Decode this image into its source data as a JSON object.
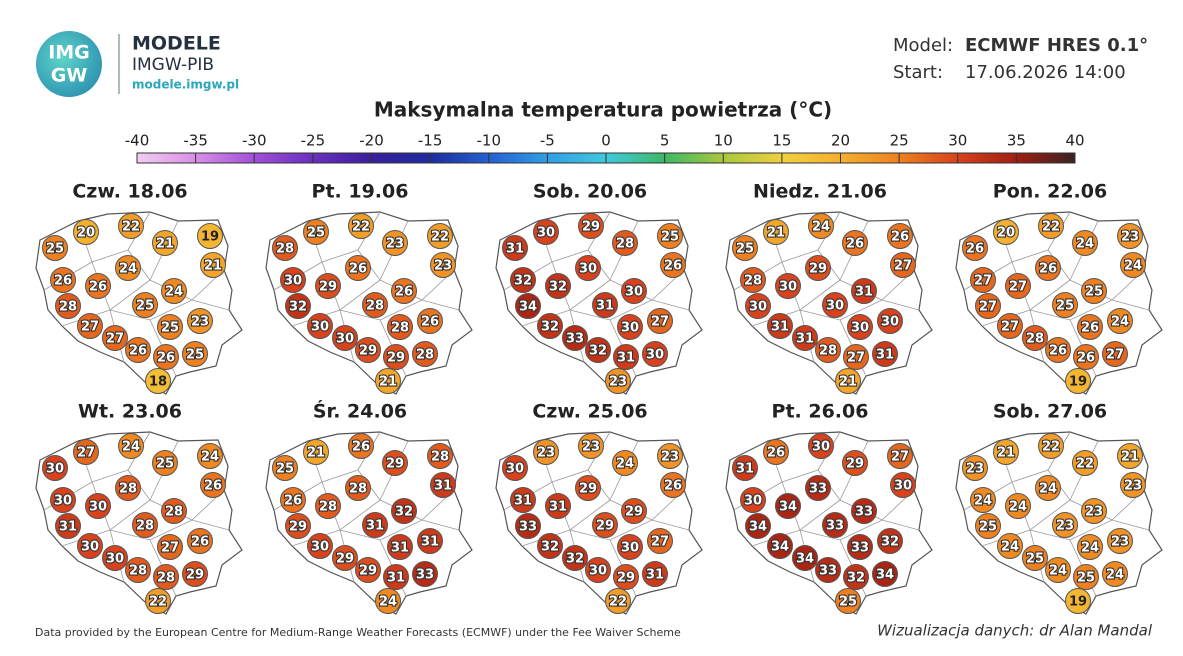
{
  "header": {
    "logo_top": "IMG",
    "logo_bottom": "GW",
    "brand": "MODELE",
    "brand_sub": "IMGW-PIB",
    "url": "modele.imgw.pl",
    "model_label": "Model:",
    "model_value": "ECMWF HRES 0.1°",
    "start_label": "Start:",
    "start_value": "17.06.2026 14:00"
  },
  "chart_data": {
    "type": "map",
    "title": "Maksymalna temperatura powietrza (°C)",
    "clim": [
      -40,
      40
    ],
    "cticks": [
      -40,
      -35,
      -30,
      -25,
      -20,
      -15,
      -10,
      -5,
      0,
      5,
      10,
      15,
      20,
      25,
      30,
      35,
      40
    ],
    "colorscale": [
      "#f3cdf3",
      "#d890e6",
      "#a050d8",
      "#6a2fc0",
      "#3a1e9c",
      "#1c2c9e",
      "#2460d2",
      "#2f9ee4",
      "#40c9de",
      "#3cb864",
      "#a8c83c",
      "#efd040",
      "#f5b02e",
      "#ee8020",
      "#d8421c",
      "#a01e12",
      "#3a2222"
    ],
    "panels": [
      {
        "title": "Czw. 18.06",
        "values": [
          25,
          20,
          22,
          21,
          19,
          21,
          24,
          26,
          26,
          24,
          25,
          28,
          27,
          25,
          23,
          27,
          26,
          26,
          25,
          18
        ]
      },
      {
        "title": "Pt. 19.06",
        "values": [
          28,
          25,
          22,
          23,
          22,
          23,
          26,
          30,
          29,
          26,
          28,
          32,
          30,
          28,
          26,
          30,
          29,
          29,
          28,
          21
        ]
      },
      {
        "title": "Sob. 20.06",
        "values": [
          31,
          30,
          29,
          28,
          25,
          26,
          30,
          32,
          32,
          30,
          31,
          34,
          32,
          30,
          27,
          33,
          32,
          31,
          30,
          23
        ]
      },
      {
        "title": "Niedz. 21.06",
        "values": [
          25,
          21,
          24,
          26,
          26,
          27,
          29,
          28,
          30,
          31,
          30,
          30,
          31,
          30,
          30,
          31,
          28,
          27,
          31,
          21
        ]
      },
      {
        "title": "Pon. 22.06",
        "values": [
          26,
          20,
          22,
          24,
          23,
          24,
          26,
          27,
          27,
          25,
          25,
          27,
          27,
          26,
          24,
          28,
          26,
          26,
          27,
          19
        ]
      },
      {
        "title": "Wt. 23.06",
        "values": [
          30,
          27,
          24,
          25,
          24,
          26,
          28,
          30,
          30,
          28,
          28,
          31,
          30,
          27,
          26,
          30,
          28,
          28,
          29,
          22
        ]
      },
      {
        "title": "Śr. 24.06",
        "values": [
          25,
          21,
          26,
          29,
          28,
          31,
          28,
          26,
          28,
          32,
          31,
          29,
          30,
          31,
          31,
          29,
          29,
          31,
          33,
          24
        ]
      },
      {
        "title": "Czw. 25.06",
        "values": [
          30,
          23,
          23,
          24,
          23,
          26,
          29,
          31,
          31,
          29,
          29,
          33,
          32,
          30,
          27,
          32,
          30,
          29,
          31,
          22
        ]
      },
      {
        "title": "Pt. 26.06",
        "values": [
          31,
          26,
          30,
          29,
          27,
          30,
          33,
          30,
          34,
          33,
          33,
          34,
          34,
          33,
          32,
          34,
          33,
          32,
          34,
          25
        ]
      },
      {
        "title": "Sob. 27.06",
        "values": [
          23,
          21,
          22,
          22,
          21,
          23,
          24,
          24,
          24,
          23,
          23,
          25,
          24,
          24,
          23,
          25,
          24,
          25,
          24,
          19
        ]
      }
    ]
  },
  "footer": {
    "source": "Data provided by the European Centre for Medium-Range Weather Forecasts (ECMWF) under the Fee Waiver Scheme",
    "author": "Wizualizacja danych: dr Alan Mandal"
  }
}
